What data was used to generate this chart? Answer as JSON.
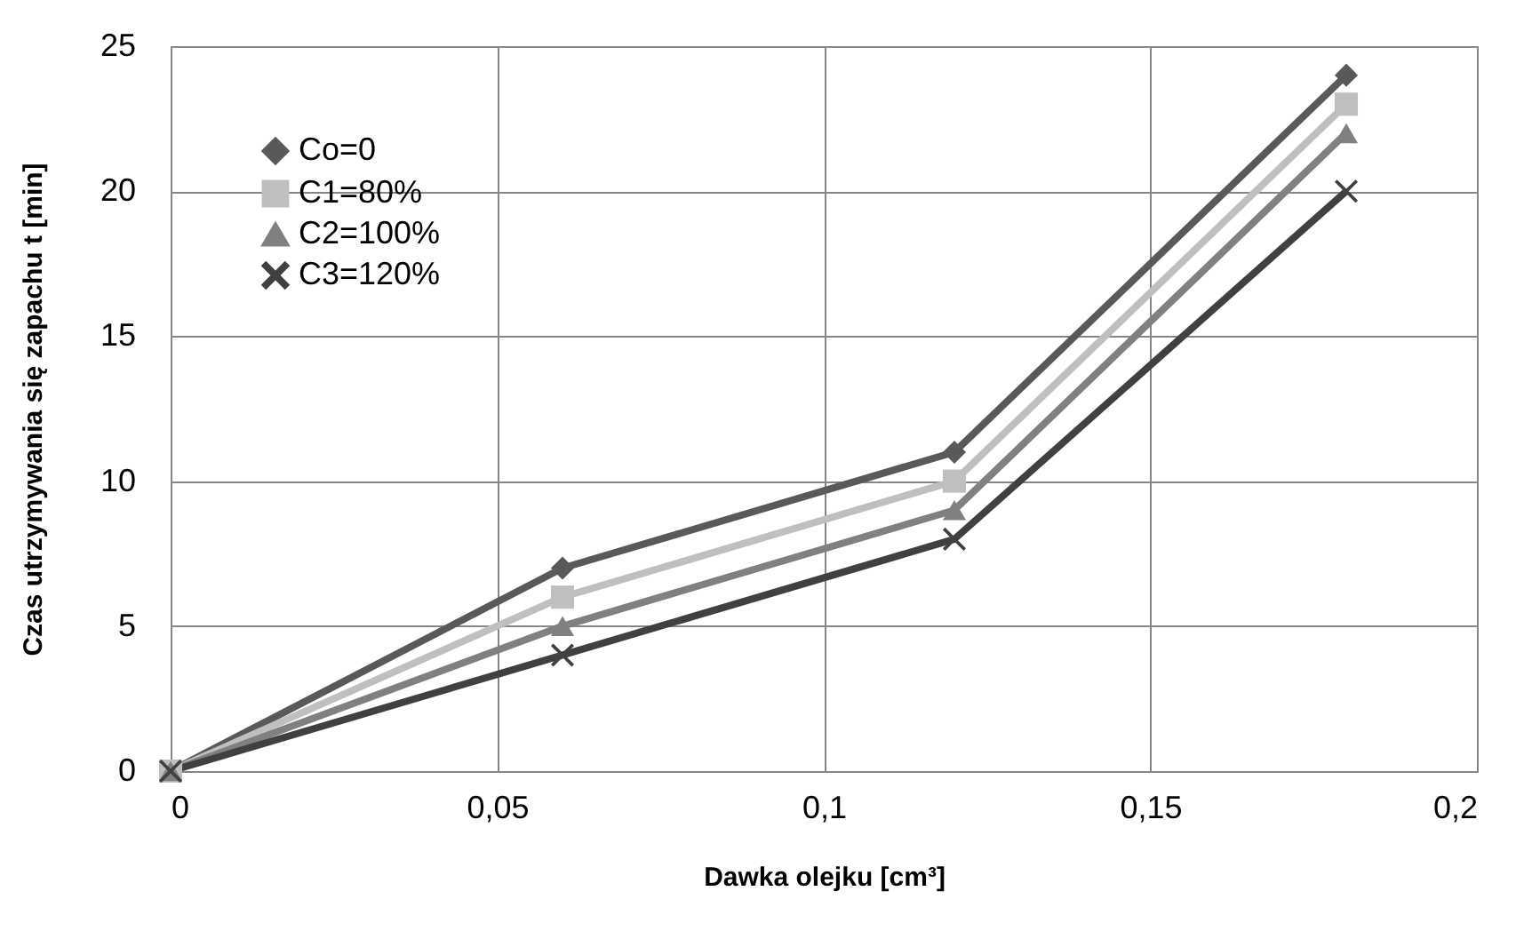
{
  "chart_data": {
    "type": "line",
    "xlabel": "Dawka olejku [cm³]",
    "ylabel": "Czas utrzymywania się zapachu t [min]",
    "x": [
      0,
      0.06,
      0.12,
      0.18
    ],
    "series": [
      {
        "name": "Co=0",
        "color": "#595959",
        "marker": "diamond",
        "values": [
          0,
          7,
          11,
          24
        ]
      },
      {
        "name": "C1=80%",
        "color": "#bfbfbf",
        "marker": "square",
        "values": [
          0,
          6,
          10,
          23
        ]
      },
      {
        "name": "C2=100%",
        "color": "#808080",
        "marker": "triangle",
        "values": [
          0,
          5,
          9,
          22
        ]
      },
      {
        "name": "C3=120%",
        "color": "#404040",
        "marker": "cross",
        "values": [
          0,
          4,
          8,
          20
        ]
      }
    ],
    "xlim": [
      0,
      0.2
    ],
    "xticks": [
      0,
      {
        "value": 0.05,
        "label": "0,05"
      },
      {
        "value": 0.1,
        "label": "0,1"
      },
      {
        "value": 0.15,
        "label": "0,15"
      },
      {
        "value": 0.2,
        "label": "0,2"
      }
    ],
    "ylim": [
      0,
      25
    ],
    "yticks": [
      0,
      5,
      10,
      15,
      20,
      25
    ],
    "grid": true,
    "legend": "top left",
    "line_style": "solid"
  }
}
